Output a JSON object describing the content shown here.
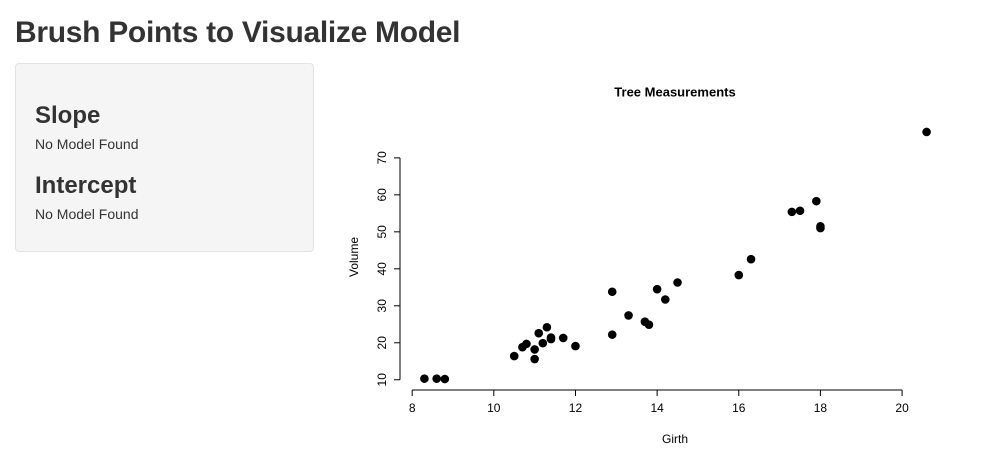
{
  "header": {
    "title": "Brush Points to Visualize Model"
  },
  "sidebar": {
    "sections": [
      {
        "heading": "Slope",
        "text": "No Model Found"
      },
      {
        "heading": "Intercept",
        "text": "No Model Found"
      }
    ]
  },
  "chart_data": {
    "type": "scatter",
    "title": "Tree Measurements",
    "x_label": "Girth",
    "y_label": "Volume",
    "x": [
      8.3,
      8.6,
      8.8,
      10.5,
      10.7,
      10.8,
      11.0,
      11.0,
      11.1,
      11.2,
      11.3,
      11.4,
      11.4,
      11.7,
      12.0,
      12.9,
      12.9,
      13.3,
      13.7,
      13.8,
      14.0,
      14.2,
      14.5,
      16.0,
      16.3,
      17.3,
      17.5,
      17.9,
      18.0,
      18.0,
      20.6
    ],
    "values": [
      10.3,
      10.3,
      10.2,
      16.4,
      18.8,
      19.7,
      15.6,
      18.2,
      22.6,
      19.9,
      24.2,
      21.0,
      21.4,
      21.3,
      19.1,
      22.2,
      33.8,
      27.4,
      25.7,
      24.9,
      34.5,
      31.7,
      36.3,
      38.3,
      42.6,
      55.4,
      55.7,
      58.3,
      51.5,
      51.0,
      77.0
    ],
    "color": "#000000",
    "xlim": [
      7.8,
      21.1
    ],
    "ylim": [
      7.5,
      79.7
    ],
    "xticks": [
      8,
      10,
      12,
      14,
      16,
      18,
      20
    ],
    "yticks": [
      10,
      20,
      30,
      40,
      50,
      60,
      70
    ]
  }
}
